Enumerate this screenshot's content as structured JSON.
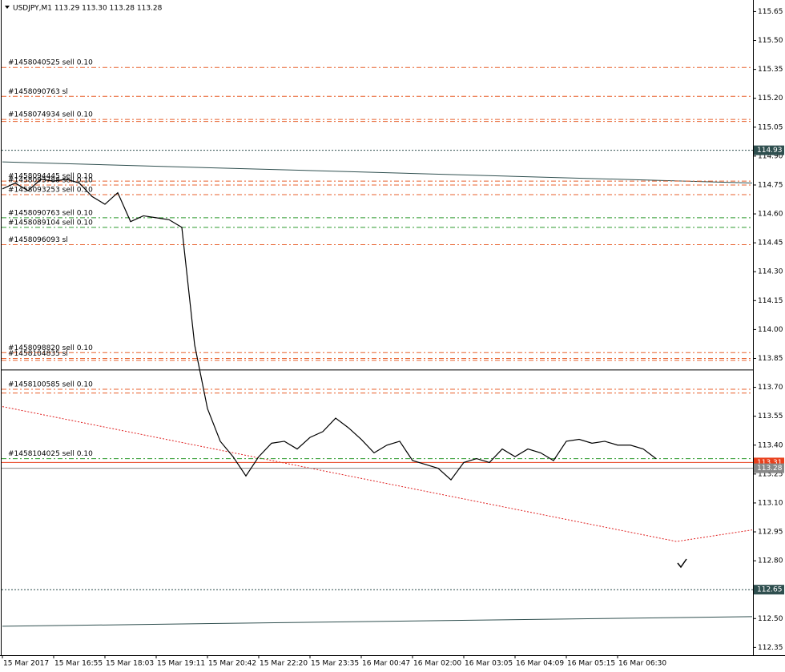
{
  "chart_data": {
    "type": "line",
    "title": "USDJPY,M1  113.29 113.30 113.28 113.28",
    "categories": [
      "15 Mar 2017",
      null,
      null,
      null,
      "15 Mar 16:55",
      null,
      null,
      null,
      "15 Mar 18:03",
      null,
      null,
      null,
      "15 Mar 19:11",
      null,
      null,
      null,
      "15 Mar 20:42",
      null,
      null,
      null,
      "15 Mar 22:20",
      null,
      null,
      null,
      "15 Mar 23:35",
      null,
      null,
      null,
      "16 Mar 00:47",
      null,
      null,
      null,
      "16 Mar 02:00",
      null,
      null,
      null,
      "16 Mar 03:05",
      null,
      null,
      null,
      "16 Mar 04:09",
      null,
      null,
      null,
      "16 Mar 05:15",
      null,
      null,
      null,
      "16 Mar 06:30",
      null,
      null,
      null
    ],
    "series": [
      {
        "name": "USDJPY,M1",
        "color": "#000000",
        "values": [
          114.73,
          114.76,
          114.72,
          114.78,
          114.77,
          114.78,
          114.76,
          114.69,
          114.65,
          114.71,
          114.56,
          114.59,
          114.58,
          114.57,
          114.53,
          113.92,
          113.59,
          113.42,
          113.34,
          113.24,
          113.34,
          113.41,
          113.42,
          113.38,
          113.44,
          113.47,
          113.54,
          113.49,
          113.43,
          113.36,
          113.4,
          113.42,
          113.32,
          113.3,
          113.28,
          113.22,
          113.31,
          113.33,
          113.31,
          113.38,
          113.34,
          113.38,
          113.36,
          113.32,
          113.42,
          113.43,
          113.41,
          113.42,
          113.4,
          113.4,
          113.38,
          113.33
        ]
      }
    ],
    "ylim": [
      112.31,
      115.71
    ],
    "yticks": [
      115.65,
      {
        "value": 115.5,
        "label": "115.50"
      },
      115.35,
      {
        "value": 115.2,
        "label": "115.20"
      },
      115.05,
      {
        "value": 114.9,
        "label": "114.90"
      },
      114.75,
      {
        "value": 114.6,
        "label": "114.60"
      },
      114.45,
      {
        "value": 114.3,
        "label": "114.30"
      },
      114.15,
      {
        "value": 114.0,
        "label": "114.00"
      },
      113.85,
      {
        "value": 113.7,
        "label": "113.70"
      },
      113.55,
      {
        "value": 113.4,
        "label": "113.40"
      },
      113.25,
      {
        "value": 113.1,
        "label": "113.10"
      },
      112.95,
      {
        "value": 112.8,
        "label": "112.80"
      },
      112.65,
      {
        "value": 112.5,
        "label": "112.50"
      },
      112.35
    ],
    "levels": [
      {
        "label": "#1458040525 sell 0.10",
        "price": 115.36,
        "color": "#e8602c"
      },
      {
        "label": "#1458090763 sl",
        "price": 115.21,
        "color": "#e8602c"
      },
      {
        "label": "#1458074934 sell 0.10",
        "price": 115.09,
        "color": "#e8602c"
      },
      {
        "price": 115.08,
        "color": "#e8602c"
      },
      {
        "label": "#1458094445 sell 0.10",
        "price": 114.77,
        "color": "#e8602c"
      },
      {
        "label": "#1458093788 sell 0.10",
        "price": 114.75,
        "color": "#e8602c"
      },
      {
        "label": "#1458093253 sell 0.10",
        "price": 114.7,
        "color": "#e8602c"
      },
      {
        "label": "#1458090763 sell 0.10",
        "price": 114.58,
        "color": "#2e9b2e"
      },
      {
        "label": "#1458089104 sell 0.10",
        "price": 114.53,
        "color": "#2e9b2e"
      },
      {
        "label": "#1458096093 sl",
        "price": 114.44,
        "color": "#e8602c"
      },
      {
        "label": "#1458098820 sell 0.10",
        "price": 113.88,
        "color": "#e8602c"
      },
      {
        "label": "#1458104835 sl",
        "price": 113.85,
        "color": "#e8602c"
      },
      {
        "price": 113.84,
        "color": "#e8602c"
      },
      {
        "label": "#1458100585 sell 0.10",
        "price": 113.69,
        "color": "#e8602c"
      },
      {
        "price": 113.67,
        "color": "#e8602c"
      },
      {
        "label": "#1458104025 sell 0.10",
        "price": 113.33,
        "color": "#2e9b2e"
      }
    ],
    "price_lines": [
      {
        "price": 114.93,
        "label": "114.93",
        "color": "#2f4f4f",
        "dash": "dotted"
      },
      {
        "price": 112.65,
        "label": "112.65",
        "color": "#2f4f4f",
        "dash": "dotted"
      },
      {
        "price": 113.79,
        "color": "#000000",
        "dash": "solid"
      },
      {
        "price": 113.31,
        "label": "113.31",
        "color": "#e8401c",
        "dash": "solid"
      },
      {
        "price": 113.28,
        "label": "113.28",
        "color": "#888888",
        "dash": "solid"
      }
    ],
    "trendlines": [
      {
        "color": "#2f4f4f",
        "x": [
          0,
          58.5
        ],
        "y": [
          114.87,
          114.76
        ]
      },
      {
        "color": "#2f4f4f",
        "x": [
          0,
          58.5
        ],
        "y": [
          112.46,
          112.51
        ]
      },
      {
        "color": "#e02020",
        "x": [
          0,
          52.6,
          58.5
        ],
        "y": [
          113.6,
          112.9,
          112.96
        ]
      }
    ]
  }
}
